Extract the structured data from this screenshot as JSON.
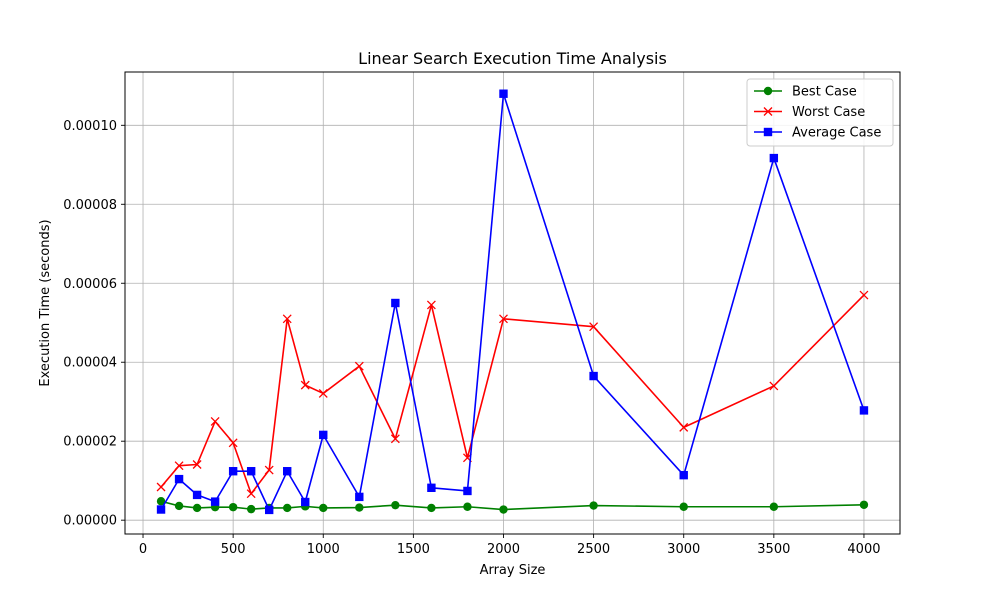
{
  "chart_data": {
    "type": "line",
    "title": "Linear Search Execution Time Analysis",
    "xlabel": "Array Size",
    "ylabel": "Execution Time (seconds)",
    "xlim": [
      -100,
      4200
    ],
    "ylim": [
      -3.5e-06,
      0.0001135
    ],
    "x_ticks": [
      0,
      500,
      1000,
      1500,
      2000,
      2500,
      3000,
      3500,
      4000
    ],
    "x_tick_labels": [
      "0",
      "500",
      "1000",
      "1500",
      "2000",
      "2500",
      "3000",
      "3500",
      "4000"
    ],
    "y_ticks": [
      0,
      2e-05,
      4e-05,
      6e-05,
      8e-05,
      0.0001
    ],
    "y_tick_labels": [
      "0.00000",
      "0.00002",
      "0.00004",
      "0.00006",
      "0.00008",
      "0.00010"
    ],
    "grid": true,
    "legend_position": "top-right",
    "x": [
      100,
      200,
      300,
      400,
      500,
      600,
      700,
      800,
      900,
      1000,
      1200,
      1400,
      1600,
      1800,
      2000,
      2500,
      3000,
      3500,
      4000
    ],
    "series": [
      {
        "name": "Best Case",
        "color": "#008000",
        "marker": "circle",
        "values": [
          4.8e-06,
          3.6e-06,
          3.1e-06,
          3.3e-06,
          3.3e-06,
          2.8e-06,
          3.1e-06,
          3.1e-06,
          3.5e-06,
          3.1e-06,
          3.2e-06,
          3.8e-06,
          3.1e-06,
          3.4e-06,
          2.7e-06,
          3.7e-06,
          3.4e-06,
          3.4e-06,
          3.9e-06
        ]
      },
      {
        "name": "Worst Case",
        "color": "#ff0000",
        "marker": "x",
        "values": [
          8.4e-06,
          1.38e-05,
          1.41e-05,
          2.5e-05,
          1.96e-05,
          6.7e-06,
          1.27e-05,
          5.1e-05,
          3.42e-05,
          3.21e-05,
          3.9e-05,
          2.06e-05,
          5.45e-05,
          1.58e-05,
          5.1e-05,
          4.9e-05,
          2.35e-05,
          3.4e-05,
          5.7e-05
        ]
      },
      {
        "name": "Average Case",
        "color": "#0000ff",
        "marker": "square",
        "values": [
          2.7e-06,
          1.04e-05,
          6.4e-06,
          4.7e-06,
          1.24e-05,
          1.24e-05,
          2.6e-06,
          1.24e-05,
          4.6e-06,
          2.16e-05,
          5.9e-06,
          5.5e-05,
          8.2e-06,
          7.4e-06,
          0.000108,
          3.65e-05,
          1.14e-05,
          9.17e-05,
          2.78e-05
        ]
      }
    ]
  }
}
